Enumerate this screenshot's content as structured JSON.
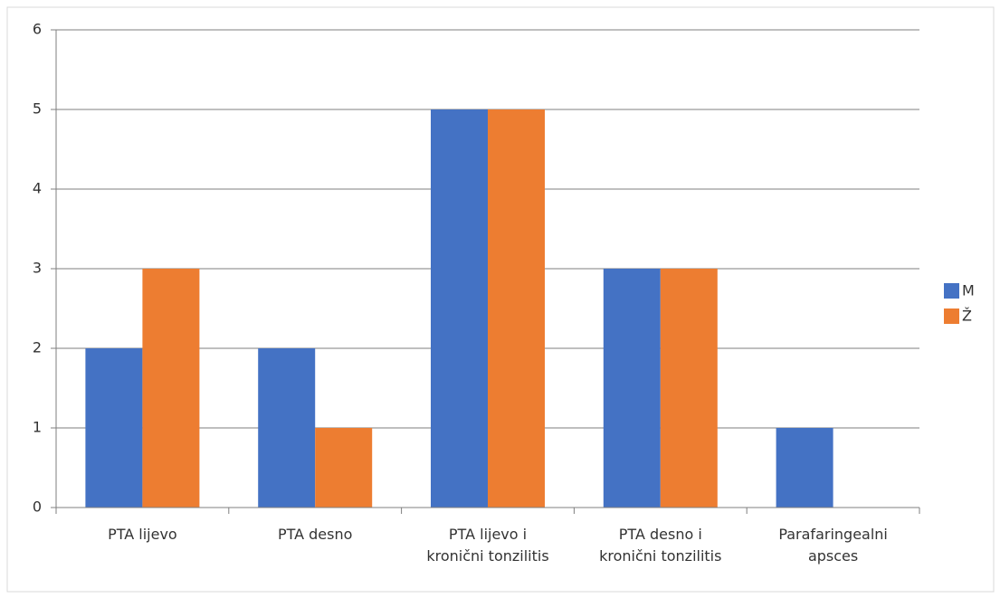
{
  "chart_data": {
    "type": "bar",
    "categories": [
      "PTA lijevo",
      "PTA desno",
      "PTA lijevo i\nkronični tonzilitis",
      "PTA desno i\nkronični tonzilitis",
      "Parafaringealni\napsces"
    ],
    "series": [
      {
        "name": "M",
        "color": "#4472c4",
        "values": [
          2,
          2,
          5,
          3,
          1
        ]
      },
      {
        "name": "Ž",
        "color": "#ed7d31",
        "values": [
          3,
          1,
          5,
          3,
          0
        ]
      }
    ],
    "ylim": [
      0,
      6
    ],
    "yticks": [
      0,
      1,
      2,
      3,
      4,
      5,
      6
    ],
    "grid": true,
    "legend": "right"
  }
}
